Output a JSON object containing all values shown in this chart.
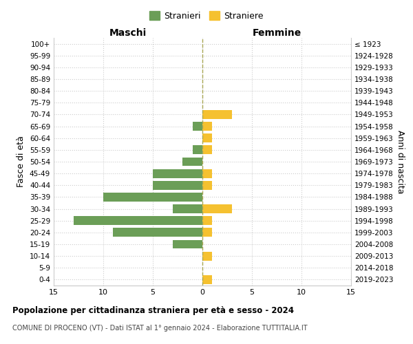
{
  "age_groups": [
    "100+",
    "95-99",
    "90-94",
    "85-89",
    "80-84",
    "75-79",
    "70-74",
    "65-69",
    "60-64",
    "55-59",
    "50-54",
    "45-49",
    "40-44",
    "35-39",
    "30-34",
    "25-29",
    "20-24",
    "15-19",
    "10-14",
    "5-9",
    "0-4"
  ],
  "birth_years": [
    "≤ 1923",
    "1924-1928",
    "1929-1933",
    "1934-1938",
    "1939-1943",
    "1944-1948",
    "1949-1953",
    "1954-1958",
    "1959-1963",
    "1964-1968",
    "1969-1973",
    "1974-1978",
    "1979-1983",
    "1984-1988",
    "1989-1993",
    "1994-1998",
    "1999-2003",
    "2004-2008",
    "2009-2013",
    "2014-2018",
    "2019-2023"
  ],
  "males": [
    0,
    0,
    0,
    0,
    0,
    0,
    0,
    1,
    0,
    1,
    2,
    5,
    5,
    10,
    3,
    13,
    9,
    3,
    0,
    0,
    0
  ],
  "females": [
    0,
    0,
    0,
    0,
    0,
    0,
    3,
    1,
    1,
    1,
    0,
    1,
    1,
    0,
    3,
    1,
    1,
    0,
    1,
    0,
    1
  ],
  "male_color": "#6b9e57",
  "female_color": "#f5c130",
  "grid_color": "#cccccc",
  "center_line_color": "#aaa855",
  "xlim": 15,
  "title": "Popolazione per cittadinanza straniera per età e sesso - 2024",
  "subtitle": "COMUNE DI PROCENO (VT) - Dati ISTAT al 1° gennaio 2024 - Elaborazione TUTTITALIA.IT",
  "left_label": "Maschi",
  "right_label": "Femmine",
  "left_axis_label": "Fasce di età",
  "right_axis_label": "Anni di nascita",
  "legend_male": "Stranieri",
  "legend_female": "Straniere",
  "bar_height": 0.75
}
